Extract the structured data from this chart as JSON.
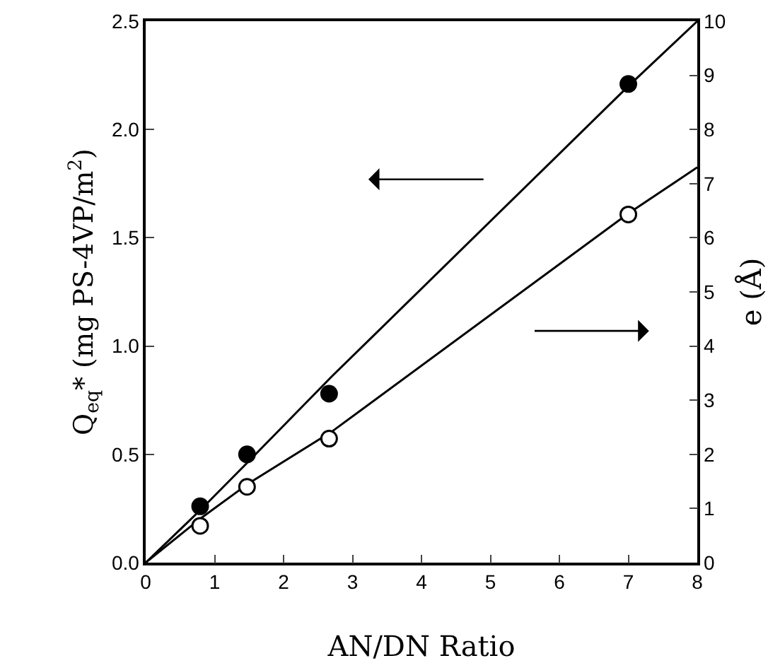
{
  "chart_data": {
    "type": "scatter",
    "xlabel": "AN/DN Ratio",
    "ylabel": "Q$_{eq}$* (mg PS-4VP/m$^{2}$)",
    "y2label": "e (Å)",
    "xlim": [
      0,
      8
    ],
    "xticks": [
      0,
      1,
      2,
      3,
      4,
      5,
      6,
      7,
      8
    ],
    "ylim": [
      0,
      2.5
    ],
    "yticks": [
      {
        "value": 0,
        "label": "0.0"
      },
      {
        "value": 0.5,
        "label": "0.5"
      },
      {
        "value": 1,
        "label": "1.0"
      },
      {
        "value": 1.5,
        "label": "1.5"
      },
      {
        "value": 2,
        "label": "2.0"
      },
      {
        "value": 2.5,
        "label": "2.5"
      }
    ],
    "y2lim": [
      0,
      10
    ],
    "y2ticks": [
      0,
      1,
      2,
      3,
      4,
      5,
      6,
      7,
      8,
      9,
      10
    ],
    "grid": false,
    "series": [
      {
        "marker": "circle",
        "color": "#000000",
        "x": [
          0.79,
          1.47,
          2.66,
          7.0
        ],
        "values": [
          0.26,
          0.5,
          0.78,
          2.21
        ]
      },
      {
        "marker": "circle",
        "color": "#ffffff",
        "axis": "y2",
        "x": [
          0.79,
          1.47,
          2.66,
          7.0
        ],
        "values": [
          0.68,
          1.4,
          2.29,
          6.43
        ]
      },
      {
        "type": "line",
        "color": "#000000",
        "x": [
          0,
          0.8,
          1.5,
          2.7,
          7,
          8
        ],
        "values": [
          0,
          0.245,
          0.47,
          0.86,
          2.2,
          2.5
        ]
      },
      {
        "type": "line",
        "color": "#000000",
        "axis": "y2",
        "x": [
          0,
          0.8,
          1.5,
          2.7,
          7,
          8
        ],
        "values": [
          0,
          0.82,
          1.47,
          2.42,
          6.45,
          7.3
        ]
      }
    ]
  }
}
